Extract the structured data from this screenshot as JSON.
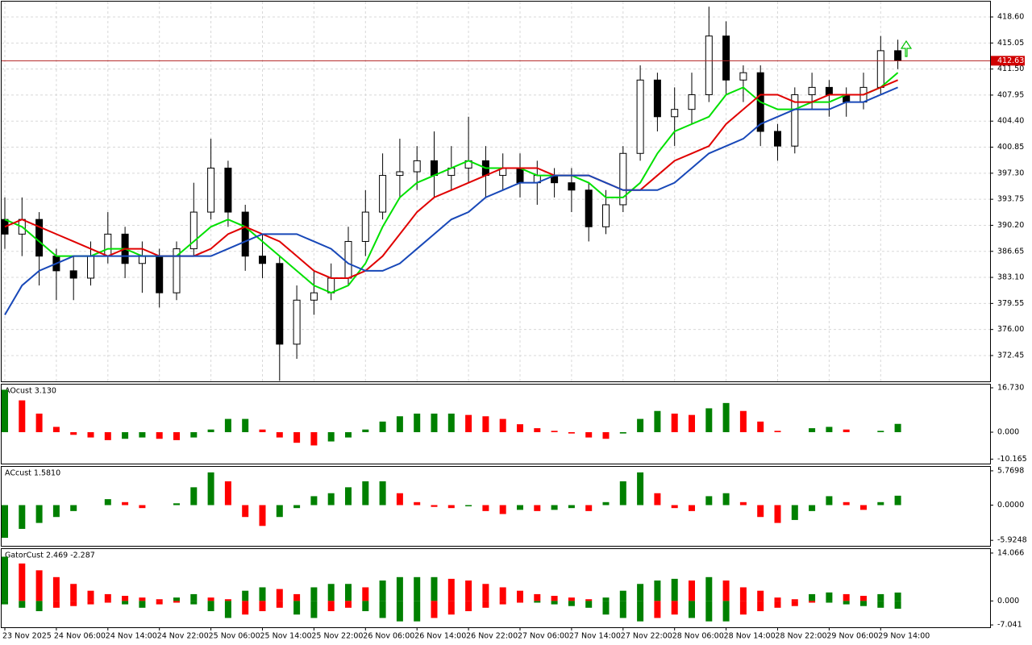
{
  "chart_data": [
    {
      "type": "candlestick",
      "categories": [
        "23 Nov 2025",
        null,
        null,
        "24 Nov 06:00",
        null,
        null,
        "24 Nov 14:00",
        null,
        null,
        "24 Nov 22:00",
        null,
        null,
        "25 Nov 06:00",
        null,
        null,
        "25 Nov 14:00",
        null,
        null,
        "25 Nov 22:00",
        null,
        null,
        "26 Nov 06:00",
        null,
        null,
        "26 Nov 14:00",
        null,
        null,
        "26 Nov 22:00",
        null,
        null,
        "27 Nov 06:00",
        null,
        null,
        "27 Nov 14:00",
        null,
        null,
        "27 Nov 22:00",
        null,
        null,
        "28 Nov 06:00",
        null,
        null,
        "28 Nov 14:00",
        null,
        null,
        "28 Nov 22:00",
        null,
        null,
        "29 Nov 06:00",
        null,
        null,
        "29 Nov 14:00",
        null
      ],
      "open": [
        391,
        389,
        391,
        386,
        384,
        383,
        386,
        389,
        385,
        386,
        381,
        387,
        392,
        398,
        392,
        386,
        385,
        374,
        380,
        381,
        383,
        388,
        392,
        397,
        397.5,
        399,
        397,
        398,
        399,
        397,
        398,
        396,
        397,
        396,
        395,
        390,
        393,
        400,
        410,
        405,
        406,
        408,
        416,
        410,
        411,
        403,
        401,
        408,
        409,
        408,
        407,
        409,
        414
      ],
      "high": [
        394,
        394,
        392,
        387,
        386,
        388,
        392,
        390,
        388,
        387,
        388,
        396,
        402,
        399,
        393,
        389,
        386,
        382,
        384,
        385,
        390,
        395,
        400,
        402,
        401,
        403,
        401,
        405,
        401,
        400,
        400,
        399,
        398,
        398,
        396,
        395,
        401,
        412,
        411,
        409,
        411,
        420,
        418,
        412,
        412,
        404,
        409,
        411,
        410,
        409,
        411,
        416,
        415.5
      ],
      "low": [
        387,
        386,
        382,
        380,
        380,
        382,
        385,
        383,
        381,
        379,
        380,
        386,
        391,
        390,
        384,
        383,
        369,
        372,
        378,
        380,
        382,
        386,
        391,
        394,
        395,
        394,
        395,
        396,
        394,
        395,
        394,
        393,
        394,
        392,
        388,
        389,
        392,
        399,
        403,
        401,
        404,
        407,
        408,
        407,
        401,
        399,
        400,
        406,
        405,
        405,
        406,
        408,
        411.5
      ],
      "close": [
        389,
        391,
        386,
        384,
        383,
        386,
        389,
        385,
        386,
        381,
        387,
        392,
        398,
        392,
        386,
        385,
        374,
        380,
        381,
        383,
        388,
        392,
        397,
        397.5,
        399,
        397,
        398,
        399,
        397,
        398,
        396,
        397,
        396,
        395,
        390,
        393,
        400,
        410,
        405,
        406,
        408,
        416,
        410,
        411,
        403,
        401,
        408,
        409,
        408,
        407,
        409,
        414,
        412.63
      ],
      "up_color": "#ffffff",
      "down_color": "#000000",
      "series": [
        {
          "color": "#00e000",
          "values": [
            391,
            390,
            388,
            386,
            386,
            386,
            387,
            387,
            386,
            386,
            386,
            388,
            390,
            391,
            390,
            388,
            386,
            384,
            382,
            381,
            382,
            385,
            390,
            394,
            396,
            397,
            398,
            399,
            398,
            398,
            398,
            397,
            397,
            397,
            396,
            394,
            394,
            396,
            400,
            403,
            404,
            405,
            408,
            409,
            407,
            406,
            406,
            407,
            407,
            408,
            408,
            409,
            411
          ]
        },
        {
          "color": "#e00000",
          "values": [
            390,
            391,
            390,
            389,
            388,
            387,
            386,
            387,
            387,
            386,
            386,
            386,
            387,
            389,
            390,
            389,
            388,
            386,
            384,
            383,
            383,
            384,
            386,
            389,
            392,
            394,
            395,
            396,
            397,
            398,
            398,
            398,
            397,
            397,
            397,
            396,
            395,
            395,
            397,
            399,
            400,
            401,
            404,
            406,
            408,
            408,
            407,
            407,
            408,
            408,
            408,
            409,
            410
          ]
        },
        {
          "color": "#1848b8",
          "values": [
            378,
            382,
            384,
            385,
            386,
            386,
            386,
            386,
            386,
            386,
            386,
            386,
            386,
            387,
            388,
            389,
            389,
            389,
            388,
            387,
            385,
            384,
            384,
            385,
            387,
            389,
            391,
            392,
            394,
            395,
            396,
            396,
            397,
            397,
            397,
            396,
            395,
            395,
            395,
            396,
            398,
            400,
            401,
            402,
            404,
            405,
            406,
            406,
            406,
            407,
            407,
            408,
            409
          ]
        }
      ],
      "current_price": {
        "value": 412.63,
        "label": "412.63"
      },
      "ylim": [
        368.93,
        420.69
      ],
      "yticks": [
        {
          "value": 418.6,
          "label": "418.60"
        },
        415.05,
        {
          "value": 411.5,
          "label": "411.50"
        },
        407.95,
        {
          "value": 404.4,
          "label": "404.40"
        },
        400.85,
        {
          "value": 397.3,
          "label": "397.30"
        },
        393.75,
        {
          "value": 390.2,
          "label": "390.20"
        },
        386.65,
        {
          "value": 383.1,
          "label": "383.10"
        },
        379.55,
        {
          "value": 376,
          "label": "376.00"
        },
        372.45
      ],
      "grid": true
    },
    {
      "type": "histogram",
      "title": "AOcust 3.130",
      "values": [
        16,
        12,
        7,
        2,
        -1,
        -2,
        -3,
        -2.5,
        -2,
        -2.5,
        -3,
        -2,
        1,
        5,
        5,
        1,
        -2,
        -4,
        -5,
        -3.5,
        -2,
        1,
        4,
        6,
        7,
        7,
        7,
        6.5,
        6,
        5,
        3,
        1.5,
        0.5,
        -0.5,
        -2,
        -2.5,
        -0.5,
        5,
        8,
        7,
        6.5,
        9,
        11,
        8,
        4,
        0.5,
        0,
        1.5,
        2,
        1,
        0,
        0.5,
        3.13
      ],
      "up_color": "#008000",
      "down_color": "#ff0000",
      "ylim": [
        -11.85,
        17.95
      ],
      "yticks": [
        {
          "value": 16.73,
          "label": "16.730"
        },
        {
          "value": 0,
          "label": "0.000"
        },
        {
          "value": -10.165,
          "label": "-10.165"
        }
      ]
    },
    {
      "type": "histogram",
      "title": "ACcust 1.5810",
      "values": [
        -5.5,
        -4,
        -3,
        -2,
        -1,
        0,
        1,
        0.5,
        -0.5,
        0,
        0.3,
        3,
        5.5,
        4,
        -2,
        -3.5,
        -2,
        -0.5,
        1.5,
        2,
        3,
        4,
        4,
        2,
        0.5,
        -0.3,
        -0.5,
        -0.2,
        -1,
        -1.5,
        -0.8,
        -1,
        -0.8,
        -0.5,
        -1,
        0.5,
        4,
        5.5,
        2,
        -0.5,
        -1,
        1.5,
        2,
        0.5,
        -2,
        -3,
        -2.5,
        -1,
        1.5,
        0.5,
        -0.8,
        0.5,
        1.581
      ],
      "up_color": "#008000",
      "down_color": "#ff0000",
      "ylim": [
        -6.85,
        6.44
      ],
      "yticks": [
        5.7698,
        {
          "value": 0,
          "label": "0.0000"
        },
        -5.9248
      ]
    },
    {
      "type": "gator",
      "title": "GatorCust 2.469 -2.287",
      "upper": [
        13,
        11,
        9,
        7,
        5,
        3,
        2,
        1.5,
        1,
        0.5,
        1,
        2,
        1,
        0.5,
        3,
        4,
        3.5,
        2,
        4,
        5,
        5,
        4,
        6,
        7,
        7,
        7,
        6.5,
        6,
        5,
        4,
        3,
        2,
        1.5,
        1,
        0.5,
        1,
        3,
        5,
        6,
        6.5,
        6,
        7,
        6,
        4,
        3,
        1,
        0.5,
        2,
        2.5,
        2,
        1.5,
        2,
        2.469
      ],
      "lower": [
        -1,
        -2,
        -3,
        -2,
        -1.5,
        -1,
        -0.5,
        -1,
        -2,
        -1,
        -0.5,
        -1,
        -3,
        -5,
        -4,
        -3,
        -2,
        -4,
        -5,
        -3,
        -2,
        -3,
        -5,
        -6,
        -6,
        -5,
        -4,
        -3,
        -2,
        -1,
        -0.5,
        -0.5,
        -1,
        -1.5,
        -2,
        -4,
        -5,
        -6,
        -5,
        -4,
        -5,
        -6,
        -6,
        -4,
        -3,
        -2,
        -1.5,
        -0.5,
        -0.5,
        -1,
        -1.5,
        -2,
        -2.287
      ],
      "up_color": "#008000",
      "down_color": "#ff0000",
      "ylim": [
        -7.73,
        15.24
      ],
      "yticks": [
        14.066,
        {
          "value": 0,
          "label": "0.000"
        },
        -7.041
      ]
    }
  ]
}
